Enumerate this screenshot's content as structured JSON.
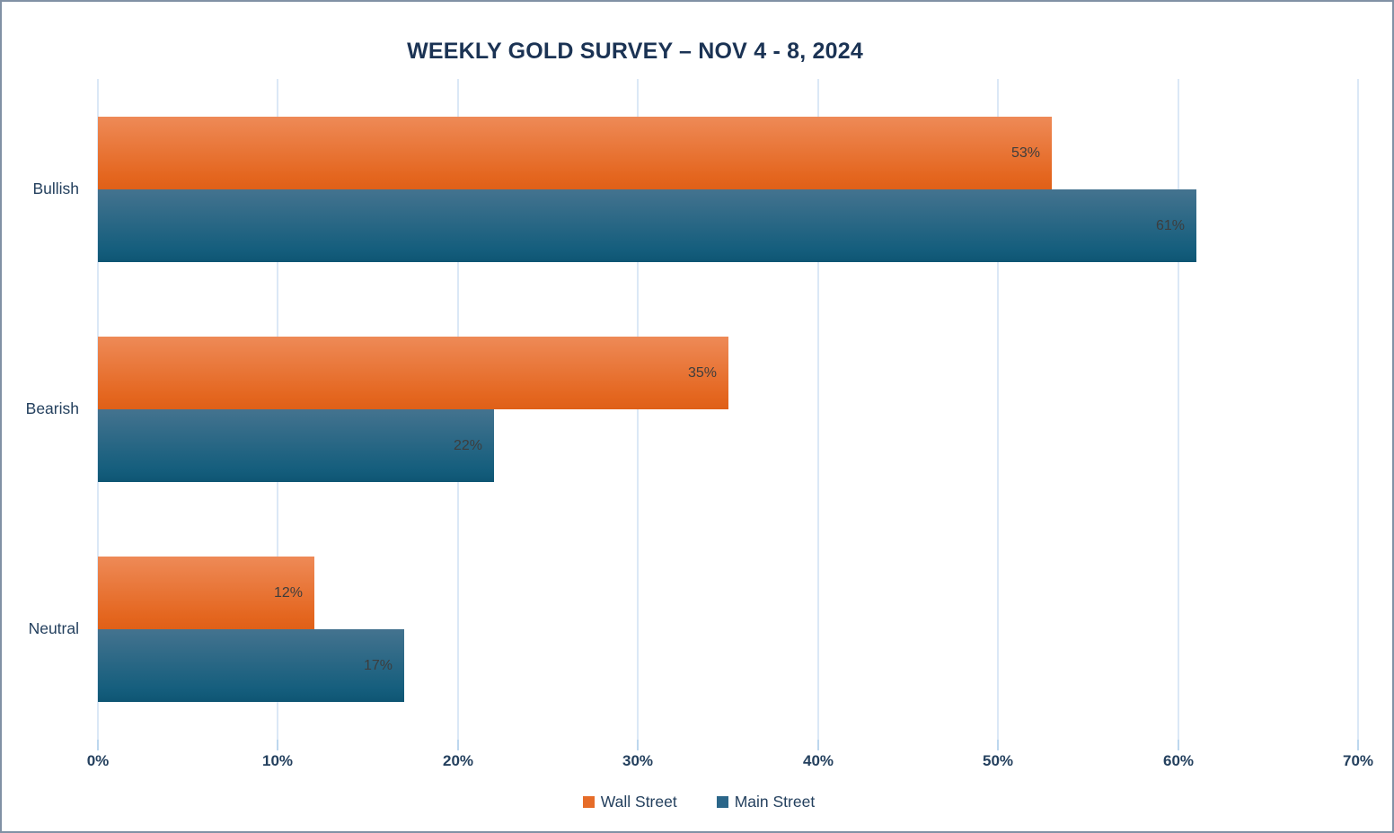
{
  "chart_data": {
    "type": "bar",
    "orientation": "horizontal",
    "title": "WEEKLY GOLD SURVEY – NOV 4 - 8, 2024",
    "categories": [
      "Bullish",
      "Bearish",
      "Neutral"
    ],
    "series": [
      {
        "name": "Wall Street",
        "values": [
          53,
          35,
          12
        ],
        "color_top": "#ee8a57",
        "color_bottom": "#df6018",
        "legend_color": "#e66c28"
      },
      {
        "name": "Main Street",
        "values": [
          61,
          22,
          17
        ],
        "color_top": "#44738f",
        "color_bottom": "#0e5573",
        "legend_color": "#2b6689"
      }
    ],
    "data_labels": {
      "Bullish": {
        "Wall Street": "53%",
        "Main Street": "61%"
      },
      "Bearish": {
        "Wall Street": "35%",
        "Main Street": "22%"
      },
      "Neutral": {
        "Wall Street": "12%",
        "Main Street": "17%"
      }
    },
    "value_suffix": "%",
    "xlim": [
      0,
      70
    ],
    "x_tick_step": 10,
    "x_ticks": [
      "0%",
      "10%",
      "20%",
      "30%",
      "40%",
      "50%",
      "60%",
      "70%"
    ],
    "grid": true,
    "legend_position": "bottom-center"
  },
  "colors": {
    "title_text": "#1b3354",
    "axis_text": "#24405e",
    "data_label_text": "#3d3d3d",
    "gridline": "#dbe8f6",
    "frame_border": "#8191a5",
    "background": "#ffffff"
  }
}
